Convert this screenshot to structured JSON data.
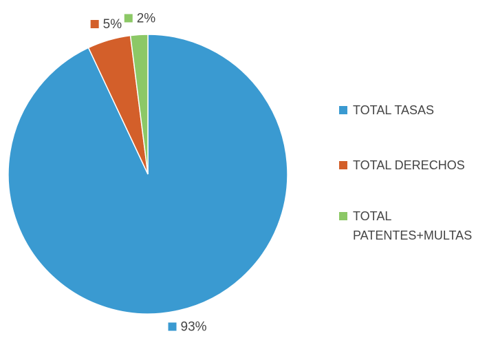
{
  "chart_data": {
    "type": "pie",
    "categories": [
      "TOTAL TASAS",
      "TOTAL DERECHOS",
      "TOTAL PATENTES+MULTAS"
    ],
    "values": [
      93,
      5,
      2
    ],
    "value_labels": [
      "93%",
      "5%",
      "2%"
    ],
    "colors": [
      "#3a9ad1",
      "#d35f2a",
      "#8cc866"
    ],
    "legend": "right"
  }
}
